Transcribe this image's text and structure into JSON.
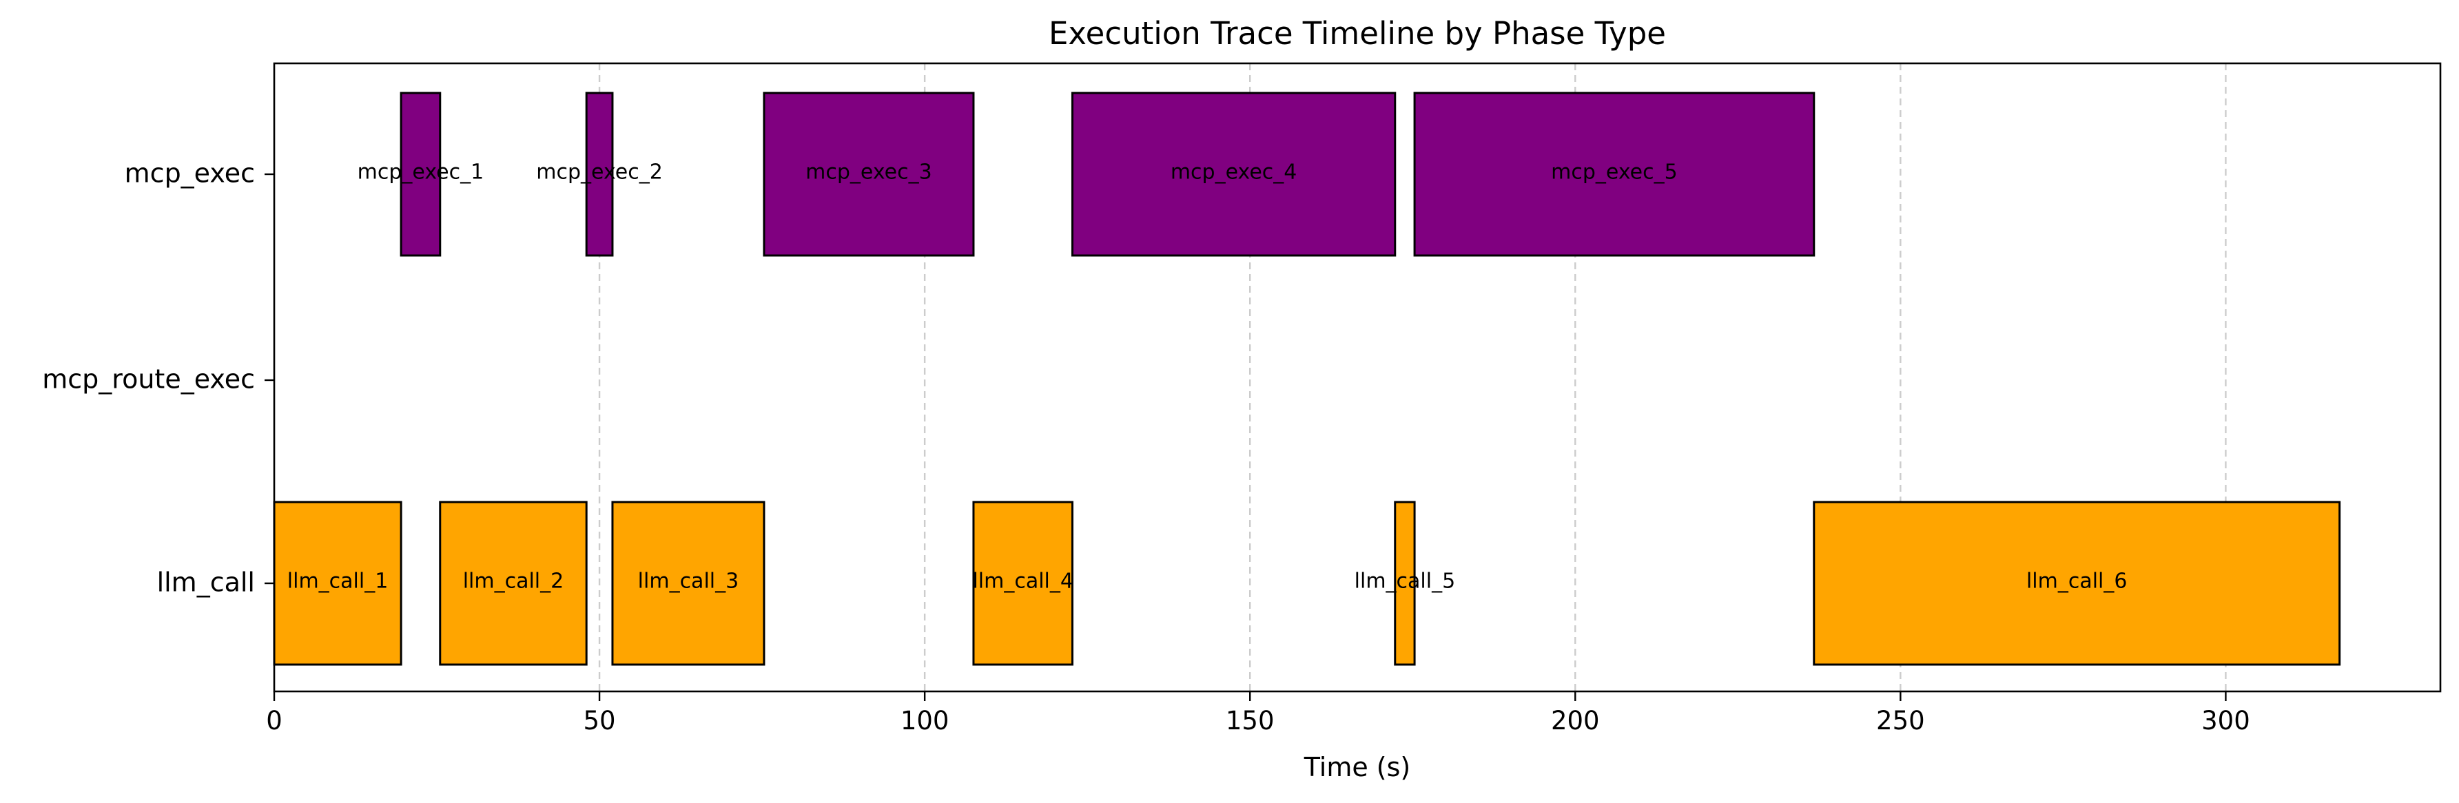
{
  "chart_data": {
    "type": "gantt",
    "title": "Execution Trace Timeline by Phase Type",
    "xlabel": "Time (s)",
    "ylabel": "",
    "xlim": [
      0,
      333
    ],
    "x_ticks": [
      0,
      50,
      100,
      150,
      200,
      250,
      300
    ],
    "x_grid": true,
    "grid_style": "dashed",
    "y_categories": [
      "llm_call",
      "mcp_route_exec",
      "mcp_exec"
    ],
    "colors": {
      "llm_call": "#FFA500",
      "mcp_exec": "#800080",
      "bar_edge": "#000000",
      "grid": "#CCCCCC"
    },
    "tasks": [
      {
        "name": "mcp_exec_1",
        "category": "mcp_exec",
        "start": 19.5,
        "end": 25.5
      },
      {
        "name": "mcp_exec_2",
        "category": "mcp_exec",
        "start": 48.0,
        "end": 52.0
      },
      {
        "name": "mcp_exec_3",
        "category": "mcp_exec",
        "start": 75.3,
        "end": 107.5
      },
      {
        "name": "mcp_exec_4",
        "category": "mcp_exec",
        "start": 122.7,
        "end": 172.3
      },
      {
        "name": "mcp_exec_5",
        "category": "mcp_exec",
        "start": 175.3,
        "end": 236.7
      },
      {
        "name": "llm_call_1",
        "category": "llm_call",
        "start": 0,
        "end": 19.5
      },
      {
        "name": "llm_call_2",
        "category": "llm_call",
        "start": 25.5,
        "end": 48.0
      },
      {
        "name": "llm_call_3",
        "category": "llm_call",
        "start": 52.0,
        "end": 75.3
      },
      {
        "name": "llm_call_4",
        "category": "llm_call",
        "start": 107.5,
        "end": 122.7
      },
      {
        "name": "llm_call_5",
        "category": "llm_call",
        "start": 172.3,
        "end": 175.3
      },
      {
        "name": "llm_call_6",
        "category": "llm_call",
        "start": 236.7,
        "end": 317.5
      }
    ]
  }
}
